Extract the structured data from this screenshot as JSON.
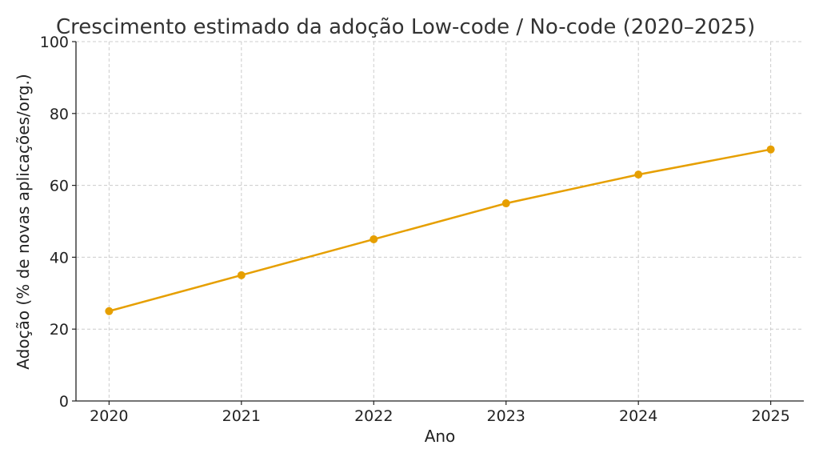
{
  "colors": {
    "series": "#E69F00",
    "grid": "#cccccc",
    "axis": "#222222",
    "text": "#333333"
  },
  "chart_data": {
    "type": "line",
    "title": "Crescimento estimado da adoção Low-code / No-code (2020–2025)",
    "xlabel": "Ano",
    "ylabel": "Adoção (% de novas aplicações/org.)",
    "x": [
      2020,
      2021,
      2022,
      2023,
      2024,
      2025
    ],
    "x_tick_labels": [
      "2020",
      "2021",
      "2022",
      "2023",
      "2024",
      "2025"
    ],
    "y_ticks": [
      0,
      20,
      40,
      60,
      80,
      100
    ],
    "y_tick_labels": [
      "0",
      "20",
      "40",
      "60",
      "80",
      "100"
    ],
    "ylim": [
      0,
      100
    ],
    "grid": true,
    "markers": true,
    "series": [
      {
        "values": [
          25,
          35,
          45,
          55,
          63,
          70
        ]
      }
    ]
  }
}
